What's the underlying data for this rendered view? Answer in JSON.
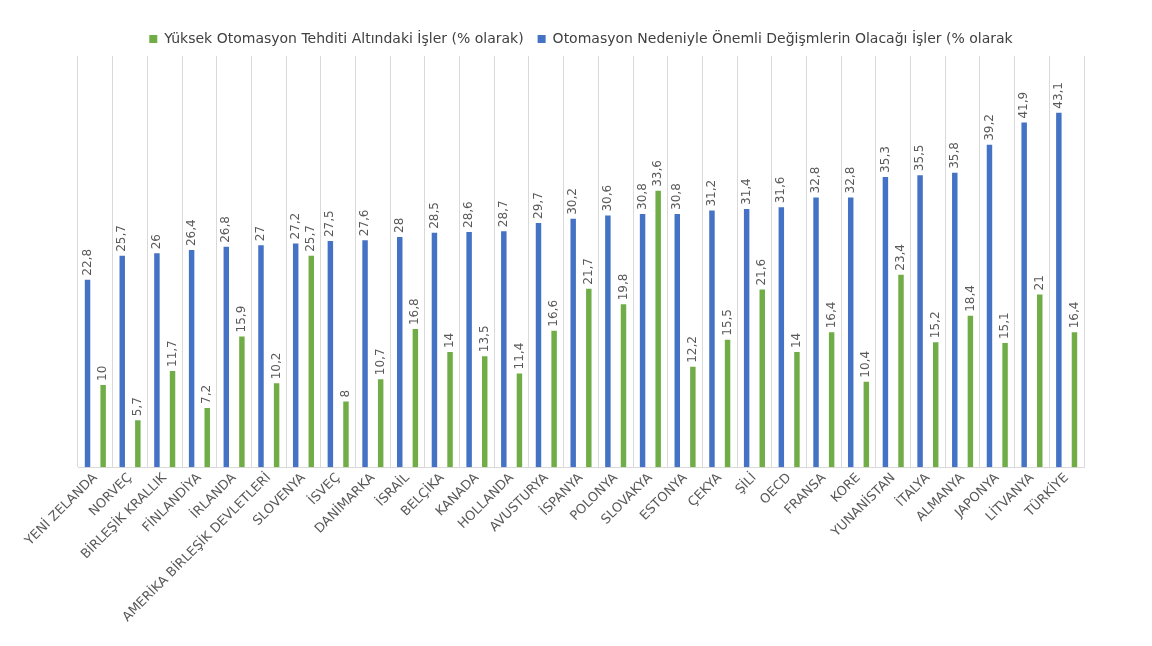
{
  "chart_data": {
    "type": "bar",
    "categories": [
      "YENİ ZELANDA",
      "NORVEÇ",
      "BİRLEŞİK KRALLIK",
      "FİNLANDİYA",
      "İRLANDA",
      "AMERİKA BİRLEŞİK DEVLETLERİ",
      "SLOVENYA",
      "İSVEÇ",
      "DANİMARKA",
      "İSRAİL",
      "BELÇİKA",
      "KANADA",
      "HOLLANDA",
      "AVUSTURYA",
      "İSPANYA",
      "POLONYA",
      "SLOVAKYA",
      "ESTONYA",
      "ÇEKYA",
      "ŞİLİ",
      "OECD",
      "FRANSA",
      "KORE",
      "YUNANİSTAN",
      "İTALYA",
      "ALMANYA",
      "JAPONYA",
      "LİTVANYA",
      "TÜRKİYE"
    ],
    "series": [
      {
        "name": "Otomasyon Nedeniyle Önemli Değişmlerin Olacağı İşler (% olarak",
        "color": "#4472c4",
        "values": [
          22.8,
          25.7,
          26,
          26.4,
          26.8,
          27,
          27.2,
          27.5,
          27.6,
          28,
          28.5,
          28.6,
          28.7,
          29.7,
          30.2,
          30.6,
          30.8,
          30.8,
          31.2,
          31.4,
          31.6,
          32.8,
          32.8,
          35.3,
          35.5,
          35.8,
          39.2,
          41.9,
          43.1
        ],
        "value_labels": [
          "22,8",
          "25,7",
          "26",
          "26,4",
          "26,8",
          "27",
          "27,2",
          "27,5",
          "27,6",
          "28",
          "28,5",
          "28,6",
          "28,7",
          "29,7",
          "30,2",
          "30,6",
          "30,8",
          "30,8",
          "31,2",
          "31,4",
          "31,6",
          "32,8",
          "32,8",
          "35,3",
          "35,5",
          "35,8",
          "39,2",
          "41,9",
          "43,1"
        ]
      },
      {
        "name": "Yüksek Otomasyon Tehditi Altındaki İşler (% olarak)",
        "color": "#70ad47",
        "values": [
          10,
          5.7,
          11.7,
          7.2,
          15.9,
          10.2,
          25.7,
          8,
          10.7,
          16.8,
          14,
          13.5,
          11.4,
          16.6,
          21.7,
          19.8,
          33.6,
          12.2,
          15.5,
          21.6,
          14,
          16.4,
          10.4,
          23.4,
          15.2,
          18.4,
          15.1,
          21,
          16.4
        ],
        "value_labels": [
          "10",
          "5,7",
          "11,7",
          "7,2",
          "15,9",
          "10,2",
          "25,7",
          "8",
          "10,7",
          "16,8",
          "14",
          "13,5",
          "11,4",
          "16,6",
          "21,7",
          "19,8",
          "33,6",
          "12,2",
          "15,5",
          "21,6",
          "14",
          "16,4",
          "10,4",
          "23,4",
          "15,2",
          "18,4",
          "15,1",
          "21",
          "16,4"
        ]
      }
    ],
    "grid": "x",
    "legend": "top"
  }
}
